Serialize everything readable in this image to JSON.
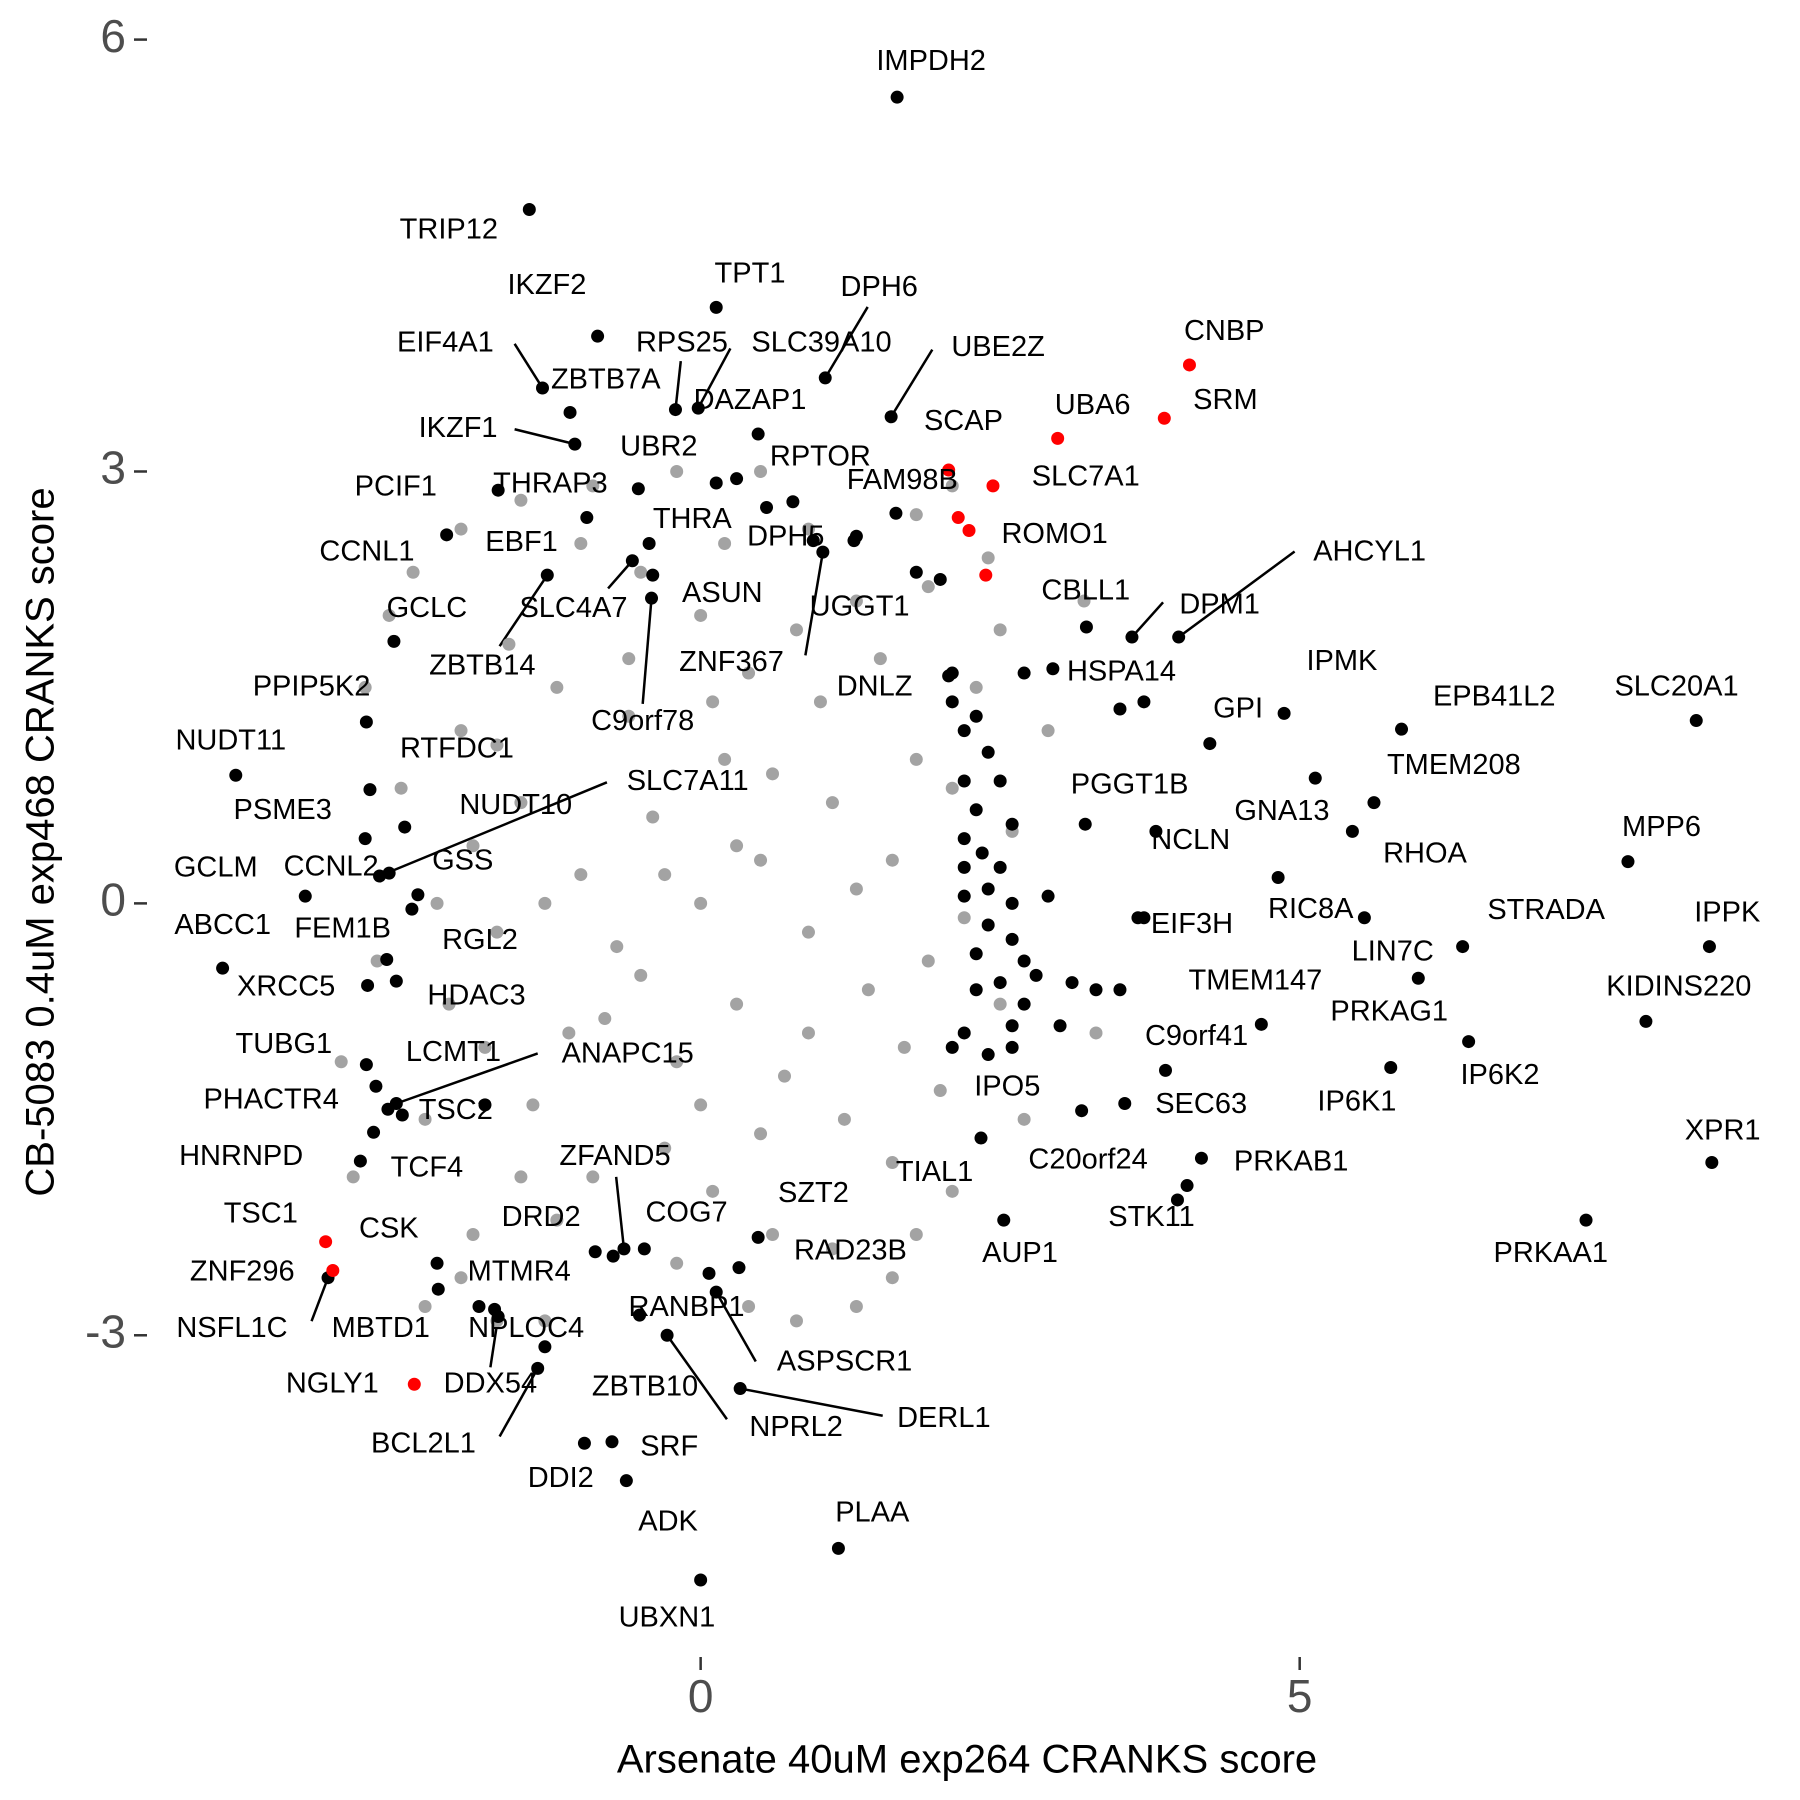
{
  "chart_data": {
    "type": "scatter",
    "x_label": "Arsenate 40uM exp264 CRANKS score",
    "y_label": "CB-5083 0.4uM exp468 CRANKS score",
    "xlim": [
      -4.5,
      8.6
    ],
    "ylim": [
      -5.2,
      6.15
    ],
    "xticks": [
      0,
      5
    ],
    "yticks": [
      -3,
      0,
      3,
      6
    ],
    "grid": false,
    "series": [
      {
        "color": "#a3a3a3",
        "x": [
          0,
          0.5,
          -0.4,
          -0.7,
          0.3,
          0.9,
          -1.0,
          0.2,
          -0.2,
          1.1,
          -1.1,
          0.7,
          -0.6,
          1.4,
          -1.5,
          0.4,
          -0.3,
          1.6,
          -1.7,
          1.0,
          -1.2,
          1.2,
          -1.4,
          1.9,
          -1.9,
          0.0,
          0.1,
          1.8,
          -1.8,
          0.8,
          -0.9,
          1.5,
          -1.6,
          1.6,
          -1.5,
          2.1,
          -2.1,
          0.6,
          -0.5,
          2.0,
          -2.0,
          1.3,
          -1.2,
          0.3,
          -0.3,
          0.6,
          -0.8,
          0.9,
          -0.5,
          1.3,
          -1.3,
          0.1,
          0.0,
          1.7,
          -1.7,
          0.5,
          -0.6,
          2.2,
          -2.2,
          0.2,
          -0.2,
          2.3,
          -2.3,
          1.1,
          -1.0,
          2.5,
          -2.5,
          1.9,
          -1.9,
          -2.6,
          2.4,
          -1.3,
          0.4,
          -0.9,
          2.6,
          -2.7,
          0.9,
          1.8,
          -2.4,
          2.1,
          -3.0,
          3.2,
          -2.0,
          0.5,
          -1.7,
          2.5,
          -2.3,
          3.3,
          1.3,
          -1.5,
          2.1,
          -0.2,
          -2.0,
          1.6,
          2.7,
          -2.8,
          0.8,
          2.9,
          -2.9,
          1.8
        ],
        "values": [
          0,
          0.3,
          0.6,
          -0.3,
          -0.7,
          -0.2,
          0.2,
          1.0,
          -1.1,
          0.7,
          -0.9,
          -1.2,
          1.3,
          -0.6,
          0.7,
          1.6,
          -1.7,
          0.3,
          -0.2,
          1.4,
          1.5,
          -1.5,
          -1.4,
          -0.4,
          0.4,
          2.0,
          -2.0,
          1.0,
          -1.0,
          1.9,
          -1.9,
          1.7,
          1.8,
          -1.8,
          -1.9,
          0.8,
          -0.7,
          -2.3,
          2.3,
          -1.3,
          1.2,
          2.1,
          -2.2,
          0.4,
          0.2,
          0.9,
          -0.8,
          -0.9,
          -0.5,
          0.1,
          0.0,
          1.4,
          -1.4,
          -1.0,
          1.1,
          -1.6,
          1.7,
          -0.1,
          0.0,
          2.5,
          -2.5,
          1.5,
          -1.5,
          -2.4,
          2.5,
          -0.7,
          0.8,
          2.2,
          -2.3,
          2.0,
          2.4,
          -2.9,
          -2.8,
          2.9,
          0.5,
          -0.4,
          2.6,
          -2.3,
          2.3,
          -2.0,
          -1.1,
          2.1,
          -2.6,
          3.0,
          -2.9,
          1.9,
          -2.8,
          -0.9,
          -2.8,
          2.8,
          2.9,
          3.0,
          2.6,
          -2.6,
          -1.5,
          1.5,
          -2.9,
          1.2,
          -1.9,
          2.7
        ]
      },
      {
        "color": "#000000",
        "x": [
          2.1,
          2.1,
          2.3,
          2.2,
          2.4,
          2.5,
          2.2,
          2.3,
          2.6,
          2.2,
          2.35,
          2.2,
          2.5,
          2.4,
          2.2,
          2.6,
          2.9,
          2.4,
          2.6,
          2.3,
          2.7,
          2.5,
          2.8,
          3.1,
          2.3,
          2.7,
          3.3,
          2.2,
          2.6,
          2.1,
          2.4,
          2.6,
          3.0,
          3.5,
          3.7,
          3.7,
          3.5,
          2.7,
          1.8,
          2.0,
          1.3,
          0.3,
          0.55,
          -1.85,
          -0.73,
          -1.8
        ],
        "values": [
          1.6,
          1.4,
          1.3,
          1.2,
          1.05,
          0.85,
          0.85,
          0.65,
          0.55,
          0.45,
          0.35,
          0.25,
          0.25,
          0.1,
          0.05,
          0.0,
          0.05,
          -0.15,
          -0.25,
          -0.35,
          -0.4,
          -0.55,
          -0.5,
          -0.55,
          -0.6,
          -0.7,
          -0.6,
          -0.9,
          -0.85,
          -1.0,
          -1.05,
          -1.0,
          -0.85,
          -0.6,
          -0.1,
          1.4,
          1.35,
          1.6,
          2.3,
          2.25,
          2.55,
          2.95,
          2.75,
          -2.8,
          -2.45,
          -1.4
        ]
      },
      {
        "color": "#ff0000",
        "x": [
          2.15,
          2.38
        ],
        "values": [
          2.68,
          2.28
        ]
      },
      {
        "color": "#000000",
        "labels": [
          "IMPDH2",
          "TRIP12",
          "IKZF2",
          "TPT1",
          "DPH6",
          "EIF4A1",
          "RPS25",
          "SLC39A10",
          "UBE2Z",
          "ZBTB7A",
          "DAZAP1",
          "IKZF1",
          "UBR2",
          "RPTOR",
          "FAM98B",
          "PCIF1",
          "THRAP3",
          "THRA",
          "DPH5",
          "CCNL1",
          "EBF1",
          "CBLL1",
          "AHCYL1",
          "DPM1",
          "SLC4A7",
          "ASUN",
          "UGGT1",
          "GCLC",
          "ZBTB14",
          "C9orf78",
          "ZNF367",
          "DNLZ",
          "HSPA14",
          "IPMK",
          "GPI",
          "EPB41L2",
          "SLC20A1",
          "PPIP5K2",
          "NUDT11",
          "RTFDC1",
          "SLC7A11",
          "PGGT1B",
          "GNA13",
          "TMEM208",
          "MPP6",
          "PSME3",
          "NUDT10",
          "NCLN",
          "RHOA",
          "GCLM",
          "CCNL2",
          "GSS",
          "ABCC1",
          "FEM1B",
          "EIF3H",
          "RIC8A",
          "STRADA",
          "IPPK",
          "RGL2",
          "XRCC5",
          "LIN7C",
          "TMEM147",
          "KIDINS220",
          "HDAC3",
          "PRKAG1",
          "C9orf41",
          "TUBG1",
          "LCMT1",
          "ANAPC15",
          "IP6K2",
          "IPO5",
          "SEC63",
          "IP6K1",
          "PHACTR4",
          "TSC2",
          "XPR1",
          "HNRNPD",
          "TCF4",
          "ZFAND5",
          "C20orf24",
          "PRKAB1",
          "TIAL1",
          "STK11",
          "AUP1",
          "PRKAA1",
          "CSK",
          "DRD2",
          "COG7",
          "SZT2",
          "RAD23B",
          "MTMR4",
          "NSFL1C",
          "MBTD1",
          "NPLOC4",
          "RANBP1",
          "ASPSCR1",
          "DDX54",
          "ZBTB10",
          "NPRL2",
          "DERL1",
          "BCL2L1",
          "SRF",
          "DDI2",
          "ADK",
          "PLAA",
          "UBXN1"
        ],
        "x": [
          1.64,
          -1.43,
          -0.86,
          0.13,
          1.04,
          -1.32,
          -0.21,
          -0.02,
          1.59,
          -1.09,
          0.48,
          -1.05,
          0.13,
          0.77,
          1.63,
          -1.69,
          -0.52,
          -0.43,
          0.94,
          -2.12,
          -0.95,
          3.22,
          3.99,
          3.6,
          -0.57,
          -0.4,
          1.28,
          -2.56,
          -1.28,
          -0.41,
          1.02,
          2.07,
          2.94,
          4.87,
          4.25,
          5.85,
          8.31,
          -2.79,
          -3.88,
          -2.76,
          -2.68,
          3.21,
          5.13,
          5.62,
          7.74,
          -2.8,
          -2.47,
          3.8,
          5.44,
          -3.3,
          -2.6,
          -2.36,
          -3.99,
          -2.41,
          3.65,
          4.82,
          6.36,
          8.42,
          -2.62,
          -2.78,
          5.54,
          4.68,
          7.89,
          -2.54,
          5.99,
          3.88,
          -2.79,
          -2.61,
          -2.54,
          6.41,
          3.18,
          3.54,
          5.76,
          -2.71,
          -2.49,
          8.44,
          -2.84,
          -2.73,
          -0.64,
          4.06,
          4.18,
          2.34,
          3.98,
          2.53,
          7.39,
          -2.2,
          -0.88,
          -0.47,
          0.48,
          0.07,
          -2.19,
          -3.11,
          -1.72,
          -1.3,
          0.32,
          0.13,
          -1.69,
          -0.51,
          -0.28,
          0.33,
          -1.36,
          -0.74,
          -0.97,
          -0.62,
          1.15,
          0.0
        ],
        "values": [
          5.6,
          4.82,
          3.94,
          4.14,
          3.65,
          3.58,
          3.43,
          3.44,
          3.38,
          3.41,
          3.26,
          3.19,
          2.92,
          2.79,
          2.71,
          2.87,
          2.88,
          2.5,
          2.52,
          2.56,
          2.68,
          1.92,
          1.85,
          1.85,
          2.38,
          2.28,
          2.52,
          1.82,
          2.28,
          2.12,
          2.44,
          1.58,
          1.63,
          1.32,
          1.11,
          1.21,
          1.27,
          1.26,
          0.89,
          0.79,
          0.19,
          0.55,
          0.87,
          0.7,
          0.29,
          0.45,
          0.53,
          0.5,
          0.5,
          0.05,
          0.21,
          0.06,
          -0.45,
          -0.04,
          -0.1,
          0.18,
          -0.3,
          -0.3,
          -0.39,
          -0.57,
          -0.1,
          -0.84,
          -0.82,
          -0.54,
          -0.52,
          -1.16,
          -1.12,
          -1.43,
          -1.39,
          -0.96,
          -1.44,
          -1.39,
          -1.14,
          -1.27,
          -1.47,
          -1.8,
          -1.79,
          -1.59,
          -2.4,
          -1.96,
          -1.77,
          -1.63,
          -2.06,
          -2.2,
          -2.2,
          -2.5,
          -2.42,
          -2.4,
          -2.32,
          -2.57,
          -2.68,
          -2.6,
          -2.82,
          -3.08,
          -2.53,
          -2.7,
          -2.87,
          -2.86,
          -3.0,
          -3.37,
          -3.23,
          -3.74,
          -3.75,
          -4.01,
          -4.48,
          -4.7
        ]
      },
      {
        "color": "#ff0000",
        "labels": [
          "CNBP",
          "SRM",
          "UBA6",
          "SCAP",
          "SLC7A1",
          "ROMO1",
          "TSC1",
          "ZNF296",
          "NGLY1"
        ],
        "x": [
          4.08,
          3.87,
          2.98,
          2.07,
          2.44,
          2.24,
          -3.13,
          -3.07,
          -2.39
        ],
        "values": [
          3.74,
          3.37,
          3.23,
          3.01,
          2.9,
          2.59,
          -2.35,
          -2.55,
          -3.34
        ]
      }
    ]
  }
}
